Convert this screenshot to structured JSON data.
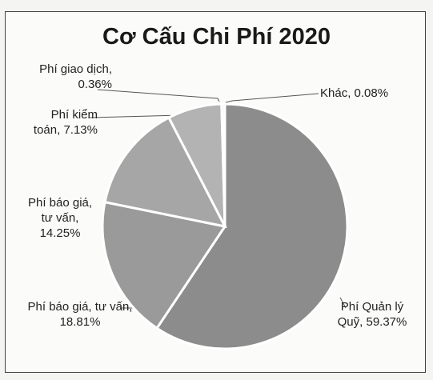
{
  "chart_data": {
    "type": "pie",
    "title": "Cơ Cấu Chi Phí 2020",
    "categories": [
      "Phí Quản lý Quỹ,",
      "Phí báo giá, tư vấn,",
      "Phí báo giá, tư vấn,",
      "Phí kiểm toán,",
      "Phí giao dịch,",
      "Khác,"
    ],
    "values": [
      59.37,
      18.81,
      14.25,
      7.13,
      0.36,
      0.08
    ],
    "value_labels": [
      "59.37%",
      "18.81%",
      "14.25%",
      "7.13%",
      "0.36%",
      "0.08%"
    ],
    "colors": [
      "#8c8c8c",
      "#9a9a9a",
      "#a6a6a6",
      "#b3b3b3",
      "#c4c4c4",
      "#cfcfcf"
    ]
  }
}
